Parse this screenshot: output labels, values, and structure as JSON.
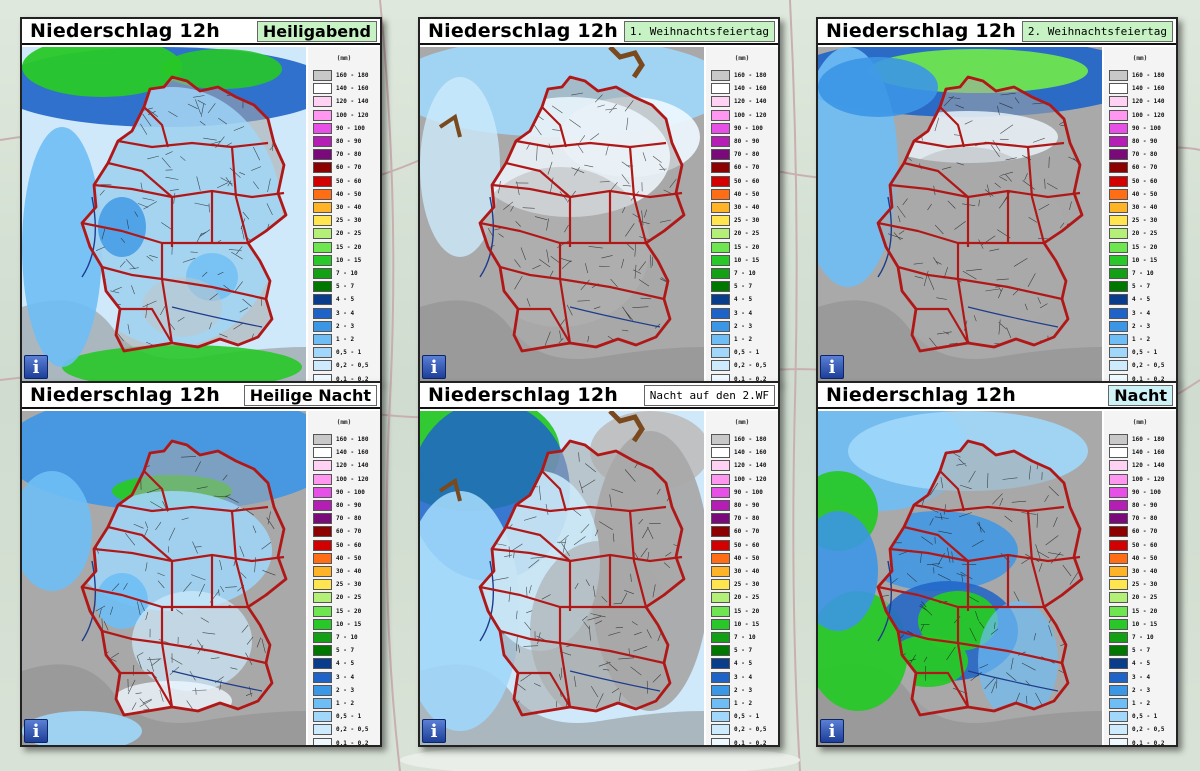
{
  "panels": [
    {
      "title": "Niederschlag 12h",
      "tag": "Heiligabend",
      "tag_bg": "#c6f2c4",
      "tag_style": "big",
      "scene": "heiligabend"
    },
    {
      "title": "Niederschlag 12h",
      "tag": "1. Weihnachtsfeiertag",
      "tag_bg": "#c6f2c4",
      "tag_style": "small",
      "scene": "wf1"
    },
    {
      "title": "Niederschlag 12h",
      "tag": "2. Weihnachtsfeiertag",
      "tag_bg": "#c6f2c4",
      "tag_style": "small",
      "scene": "wf2"
    },
    {
      "title": "Niederschlag 12h",
      "tag": "Heilige Nacht",
      "tag_bg": "#ffffff",
      "tag_style": "big",
      "scene": "heiligenacht"
    },
    {
      "title": "Niederschlag 12h",
      "tag": "Nacht auf den 2.WF",
      "tag_bg": "#ffffff",
      "tag_style": "small",
      "scene": "nacht2wf"
    },
    {
      "title": "Niederschlag 12h",
      "tag": "Nacht",
      "tag_bg": "#cdf3f7",
      "tag_style": "big",
      "scene": "nacht"
    }
  ],
  "legend": {
    "unit": "(mm)",
    "rows": [
      {
        "label": "160 - 180",
        "color": "#c8c8c8"
      },
      {
        "label": "140 - 160",
        "color": "#ffffff"
      },
      {
        "label": "120 - 140",
        "color": "#ffd2f4"
      },
      {
        "label": "100 - 120",
        "color": "#ff96f0"
      },
      {
        "label": "90 - 100",
        "color": "#e650e6"
      },
      {
        "label": "80 - 90",
        "color": "#b41eb4"
      },
      {
        "label": "70 - 80",
        "color": "#7a0a7a"
      },
      {
        "label": "60 - 70",
        "color": "#8c0000"
      },
      {
        "label": "50 - 60",
        "color": "#d20000"
      },
      {
        "label": "40 - 50",
        "color": "#ff6e14"
      },
      {
        "label": "30 - 40",
        "color": "#ffb428"
      },
      {
        "label": "25 - 30",
        "color": "#ffe650"
      },
      {
        "label": "20 - 25",
        "color": "#b4f078"
      },
      {
        "label": "15 - 20",
        "color": "#6ee650"
      },
      {
        "label": "10 - 15",
        "color": "#28c828"
      },
      {
        "label": "7 - 10",
        "color": "#14a014"
      },
      {
        "label": "5 - 7",
        "color": "#007800"
      },
      {
        "label": "4 - 5",
        "color": "#0a3c8c"
      },
      {
        "label": "3 - 4",
        "color": "#1e64c8"
      },
      {
        "label": "2 - 3",
        "color": "#3c96e6"
      },
      {
        "label": "1 - 2",
        "color": "#6ebef5"
      },
      {
        "label": "0,5 - 1",
        "color": "#a0d7fa"
      },
      {
        "label": "0,2 - 0,5",
        "color": "#cdebfc"
      },
      {
        "label": "0,1 - 0,2",
        "color": "#eef8ff"
      }
    ]
  },
  "info_label": "i",
  "colors": {
    "border": "#b01818",
    "land_grey": "#9c9c9c",
    "sea_dark": "#0a4fa0",
    "heavy_green": "#2ec82e"
  },
  "icons": [
    "info-icon"
  ]
}
